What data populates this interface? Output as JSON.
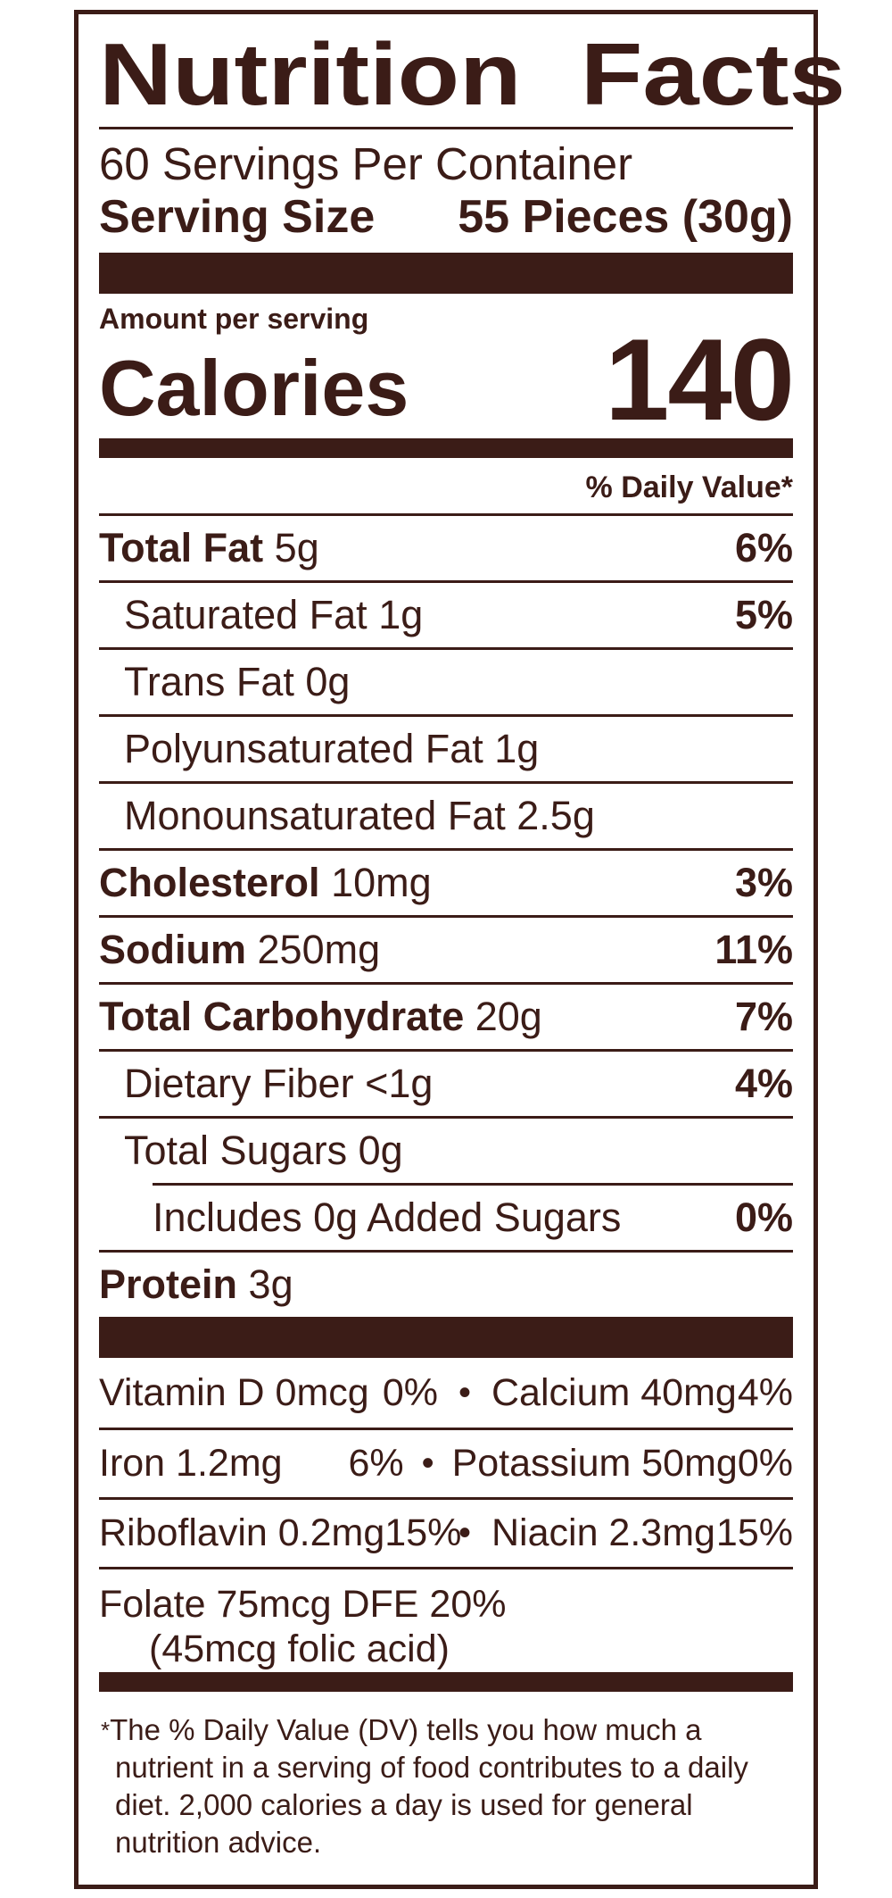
{
  "label": {
    "title": "Nutrition Facts",
    "servings_per_container": "60 Servings Per Container",
    "serving_size_label": "Serving Size",
    "serving_size_value": "55 Pieces (30g)",
    "amount_per_serving": "Amount per serving",
    "calories_label": "Calories",
    "calories_value": "140",
    "daily_value_header": "% Daily Value*",
    "nutrients": [
      {
        "name": "Total Fat",
        "amount": "5g",
        "dv": "6%"
      },
      {
        "name": "Saturated Fat",
        "amount": "1g",
        "dv": "5%"
      },
      {
        "name": "Trans Fat",
        "amount": "0g",
        "dv": ""
      },
      {
        "name": "Polyunsaturated Fat",
        "amount": "1g",
        "dv": ""
      },
      {
        "name": "Monounsaturated Fat",
        "amount": "2.5g",
        "dv": ""
      },
      {
        "name": "Cholesterol",
        "amount": "10mg",
        "dv": "3%"
      },
      {
        "name": "Sodium",
        "amount": "250mg",
        "dv": "11%"
      },
      {
        "name": "Total Carbohydrate",
        "amount": "20g",
        "dv": "7%"
      },
      {
        "name": "Dietary Fiber",
        "amount": "<1g",
        "dv": "4%"
      },
      {
        "name": "Total Sugars",
        "amount": "0g",
        "dv": ""
      },
      {
        "name": "Includes 0g Added Sugars",
        "amount": "",
        "dv": "0%"
      },
      {
        "name": "Protein",
        "amount": "3g",
        "dv": ""
      }
    ],
    "vitamins": [
      {
        "left_name": "Vitamin D 0mcg",
        "left_dv": "0%",
        "bullet": "•",
        "right_name": "Calcium 40mg",
        "right_dv": "4%"
      },
      {
        "left_name": "Iron 1.2mg",
        "left_dv": "6%",
        "bullet": "•",
        "right_name": "Potassium 50mg",
        "right_dv": "0%"
      },
      {
        "left_name": "Riboflavin 0.2mg",
        "left_dv": "15%",
        "bullet": "•",
        "right_name": "Niacin 2.3mg",
        "right_dv": "15%"
      }
    ],
    "folate_line1": "Folate 75mcg DFE 20%",
    "folate_line2": "(45mcg folic acid)",
    "footnote_star": "*",
    "footnote_text": "The % Daily Value (DV) tells you how much a nutrient in a serving of food contributes to a daily diet. 2,000 calories a day is used for general nutrition advice.",
    "colors": {
      "ink": "#3b1c17",
      "background": "#ffffff"
    }
  }
}
